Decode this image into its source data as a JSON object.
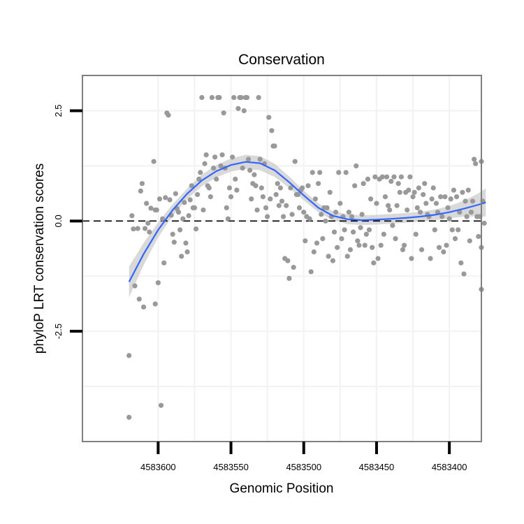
{
  "chart_data": {
    "type": "scatter",
    "title": "Conservation",
    "xlabel": "Genomic Position",
    "ylabel": "phyloP LRT conservation scores",
    "x_reversed": true,
    "xlim": [
      4583378,
      4583652
    ],
    "ylim": [
      -5.0,
      3.3
    ],
    "x_ticks": [
      4583600,
      4583550,
      4583500,
      4583450,
      4583400
    ],
    "x_tick_labels": [
      "4583600",
      "4583550",
      "4583500",
      "4583450",
      "4583400"
    ],
    "y_ticks": [
      2.5,
      0.0,
      -2.5
    ],
    "y_tick_labels": [
      "2.5",
      "0.0",
      "-2.5"
    ],
    "reference_line": {
      "y": 0.0,
      "style": "dashed"
    },
    "colors": {
      "points": "#999999",
      "smooth": "#3366ff",
      "band": "#cccccc",
      "border": "#7f7f7f",
      "grid": "#f2f2f2"
    },
    "series": [
      {
        "name": "scores",
        "points": [
          [
            4583620,
            -3.05
          ],
          [
            4583620,
            -4.45
          ],
          [
            4583618,
            0.12
          ],
          [
            4583617,
            -0.18
          ],
          [
            4583616,
            -1.47
          ],
          [
            4583614,
            -0.17
          ],
          [
            4583613,
            -1.77
          ],
          [
            4583612,
            0.68
          ],
          [
            4583611,
            0.85
          ],
          [
            4583610,
            -1.95
          ],
          [
            4583609,
            -0.17
          ],
          [
            4583608,
            0.4
          ],
          [
            4583607,
            -0.05
          ],
          [
            4583606,
            -0.25
          ],
          [
            4583605,
            0.29
          ],
          [
            4583603,
            1.35
          ],
          [
            4583602,
            -1.88
          ],
          [
            4583602,
            0.25
          ],
          [
            4583601,
            0.25
          ],
          [
            4583600,
            -1.4
          ],
          [
            4583599,
            0.5
          ],
          [
            4583598,
            -4.18
          ],
          [
            4583597,
            0.05
          ],
          [
            4583596,
            -0.95
          ],
          [
            4583595,
            0.53
          ],
          [
            4583594,
            2.45
          ],
          [
            4583593,
            2.4
          ],
          [
            4583592,
            0.48
          ],
          [
            4583591,
            0.13
          ],
          [
            4583590,
            -0.3
          ],
          [
            4583589,
            -0.48
          ],
          [
            4583588,
            0.62
          ],
          [
            4583587,
            0.28
          ],
          [
            4583586,
            0.2
          ],
          [
            4583585,
            -0.2
          ],
          [
            4583584,
            -0.8
          ],
          [
            4583583,
            0.05
          ],
          [
            4583582,
            0.42
          ],
          [
            4583581,
            -0.5
          ],
          [
            4583580,
            -0.7
          ],
          [
            4583579,
            0.12
          ],
          [
            4583578,
            0.48
          ],
          [
            4583577,
            0.8
          ],
          [
            4583576,
            0.3
          ],
          [
            4583575,
            0.3
          ],
          [
            4583574,
            -0.18
          ],
          [
            4583573,
            0.6
          ],
          [
            4583572,
            0.95
          ],
          [
            4583571,
            1.1
          ],
          [
            4583570,
            2.8
          ],
          [
            4583569,
            0.25
          ],
          [
            4583568,
            1.3
          ],
          [
            4583567,
            1.5
          ],
          [
            4583566,
            0.8
          ],
          [
            4583565,
            0.75
          ],
          [
            4583564,
            0.55
          ],
          [
            4583563,
            2.8
          ],
          [
            4583562,
            1.2
          ],
          [
            4583561,
            1.45
          ],
          [
            4583560,
            0.95
          ],
          [
            4583559,
            2.8
          ],
          [
            4583558,
            2.8
          ],
          [
            4583557,
            1.25
          ],
          [
            4583556,
            1.5
          ],
          [
            4583555,
            2.45
          ],
          [
            4583554,
            1.2
          ],
          [
            4583553,
            0.3
          ],
          [
            4583552,
            0.05
          ],
          [
            4583551,
            0.75
          ],
          [
            4583550,
            0.55
          ],
          [
            4583549,
            1.45
          ],
          [
            4583548,
            2.8
          ],
          [
            4583547,
            0.95
          ],
          [
            4583546,
            0.7
          ],
          [
            4583545,
            2.55
          ],
          [
            4583544,
            2.8
          ],
          [
            4583543,
            2.8
          ],
          [
            4583542,
            1.2
          ],
          [
            4583541,
            2.5
          ],
          [
            4583540,
            2.8
          ],
          [
            4583539,
            2.8
          ],
          [
            4583538,
            1.4
          ],
          [
            4583537,
            1.15
          ],
          [
            4583536,
            0.5
          ],
          [
            4583535,
            0.85
          ],
          [
            4583534,
            1.05
          ],
          [
            4583533,
            0.8
          ],
          [
            4583532,
            0.25
          ],
          [
            4583531,
            2.8
          ],
          [
            4583530,
            1.4
          ],
          [
            4583529,
            0.75
          ],
          [
            4583528,
            0.55
          ],
          [
            4583527,
            1.3
          ],
          [
            4583526,
            0.3
          ],
          [
            4583525,
            0.1
          ],
          [
            4583524,
            2.35
          ],
          [
            4583523,
            0.5
          ],
          [
            4583522,
            2.05
          ],
          [
            4583521,
            1.7
          ],
          [
            4583520,
            1.7
          ],
          [
            4583519,
            0.6
          ],
          [
            4583518,
            0.85
          ],
          [
            4583517,
            0.35
          ],
          [
            4583516,
            0.75
          ],
          [
            4583515,
            0.45
          ],
          [
            4583514,
            0.1
          ],
          [
            4583513,
            -0.85
          ],
          [
            4583512,
            0.35
          ],
          [
            4583511,
            -0.9
          ],
          [
            4583510,
            -1.3
          ],
          [
            4583509,
            0.75
          ],
          [
            4583508,
            0.15
          ],
          [
            4583507,
            -1.05
          ],
          [
            4583506,
            1.35
          ],
          [
            4583505,
            0.6
          ],
          [
            4583504,
            0.6
          ],
          [
            4583503,
            0.3
          ],
          [
            4583502,
            0.7
          ],
          [
            4583501,
            0.75
          ],
          [
            4583500,
            0.2
          ],
          [
            4583499,
            -0.45
          ],
          [
            4583498,
            0.1
          ],
          [
            4583497,
            0.8
          ],
          [
            4583496,
            0.05
          ],
          [
            4583495,
            -1.15
          ],
          [
            4583494,
            1.1
          ],
          [
            4583493,
            -0.7
          ],
          [
            4583492,
            0.5
          ],
          [
            4583491,
            -0.5
          ],
          [
            4583490,
            0.85
          ],
          [
            4583489,
            1.1
          ],
          [
            4583488,
            0.15
          ],
          [
            4583487,
            -0.4
          ],
          [
            4583486,
            0.3
          ],
          [
            4583485,
            0.0
          ],
          [
            4583484,
            0.3
          ],
          [
            4583483,
            -0.8
          ],
          [
            4583482,
            0.65
          ],
          [
            4583481,
            0.1
          ],
          [
            4583480,
            -0.9
          ],
          [
            4583479,
            -0.25
          ],
          [
            4583478,
            0.2
          ],
          [
            4583477,
            -0.6
          ],
          [
            4583476,
            1.1
          ],
          [
            4583475,
            0.4
          ],
          [
            4583474,
            -0.4
          ],
          [
            4583473,
            0.1
          ],
          [
            4583472,
            -0.2
          ],
          [
            4583471,
            1.1
          ],
          [
            4583470,
            -0.8
          ],
          [
            4583469,
            0.2
          ],
          [
            4583468,
            -0.65
          ],
          [
            4583467,
            0.1
          ],
          [
            4583466,
            -0.25
          ],
          [
            4583465,
            0.8
          ],
          [
            4583464,
            1.25
          ],
          [
            4583463,
            -0.45
          ],
          [
            4583462,
            -0.55
          ],
          [
            4583461,
            -0.15
          ],
          [
            4583460,
            0.15
          ],
          [
            4583459,
            0.85
          ],
          [
            4583458,
            -0.55
          ],
          [
            4583457,
            -0.3
          ],
          [
            4583456,
            0.95
          ],
          [
            4583455,
            -0.2
          ],
          [
            4583454,
            0.5
          ],
          [
            4583453,
            -0.6
          ],
          [
            4583452,
            -0.95
          ],
          [
            4583451,
            1.0
          ],
          [
            4583450,
            0.4
          ],
          [
            4583449,
            -0.85
          ],
          [
            4583448,
            0.95
          ],
          [
            4583447,
            -0.55
          ],
          [
            4583446,
            1.0
          ],
          [
            4583445,
            -0.3
          ],
          [
            4583444,
            0.55
          ],
          [
            4583443,
            1.0
          ],
          [
            4583442,
            0.35
          ],
          [
            4583441,
            0.25
          ],
          [
            4583440,
            0.9
          ],
          [
            4583439,
            -0.1
          ],
          [
            4583438,
            1.0
          ],
          [
            4583437,
            -0.4
          ],
          [
            4583436,
            0.35
          ],
          [
            4583435,
            0.85
          ],
          [
            4583434,
            0.65
          ],
          [
            4583433,
            1.0
          ],
          [
            4583432,
            -0.65
          ],
          [
            4583431,
            -0.55
          ],
          [
            4583430,
            0.65
          ],
          [
            4583429,
            0.25
          ],
          [
            4583428,
            0.7
          ],
          [
            4583427,
            1.0
          ],
          [
            4583426,
            -0.85
          ],
          [
            4583425,
            0.55
          ],
          [
            4583424,
            0.65
          ],
          [
            4583423,
            -0.3
          ],
          [
            4583422,
            0.3
          ],
          [
            4583421,
            0.75
          ],
          [
            4583420,
            0.2
          ],
          [
            4583419,
            -0.65
          ],
          [
            4583418,
            0.6
          ],
          [
            4583417,
            0.85
          ],
          [
            4583416,
            0.4
          ],
          [
            4583415,
            0.15
          ],
          [
            4583414,
            0.1
          ],
          [
            4583413,
            -0.85
          ],
          [
            4583412,
            0.5
          ],
          [
            4583411,
            0.75
          ],
          [
            4583410,
            -0.2
          ],
          [
            4583409,
            0.4
          ],
          [
            4583408,
            0.2
          ],
          [
            4583407,
            -0.6
          ],
          [
            4583406,
            0.55
          ],
          [
            4583405,
            0.1
          ],
          [
            4583404,
            -0.7
          ],
          [
            4583403,
            0.55
          ],
          [
            4583402,
            -0.55
          ],
          [
            4583401,
            0.3
          ],
          [
            4583400,
            0.05
          ],
          [
            4583399,
            0.5
          ],
          [
            4583398,
            -0.2
          ],
          [
            4583397,
            0.7
          ],
          [
            4583396,
            -0.4
          ],
          [
            4583395,
            0.55
          ],
          [
            4583394,
            -0.2
          ],
          [
            4583393,
            0.2
          ],
          [
            4583392,
            -0.95
          ],
          [
            4583391,
            0.65
          ],
          [
            4583390,
            -1.2
          ],
          [
            4583389,
            0.45
          ],
          [
            4583388,
            0.1
          ],
          [
            4583387,
            0.7
          ],
          [
            4583386,
            -0.45
          ],
          [
            4583385,
            0.2
          ],
          [
            4583384,
            0.45
          ],
          [
            4583383,
            1.4
          ],
          [
            4583382,
            1.3
          ],
          [
            4583381,
            0.1
          ],
          [
            4583380,
            -0.35
          ],
          [
            4583379,
            0.1
          ],
          [
            4583378,
            -0.6
          ],
          [
            4583378,
            1.35
          ],
          [
            4583378,
            -1.55
          ],
          [
            4583377,
            0.45
          ],
          [
            4583376,
            -0.05
          ]
        ]
      },
      {
        "name": "smooth",
        "x": [
          4583620,
          4583610,
          4583600,
          4583590,
          4583580,
          4583570,
          4583560,
          4583550,
          4583540,
          4583530,
          4583520,
          4583510,
          4583500,
          4583490,
          4583480,
          4583470,
          4583460,
          4583450,
          4583440,
          4583430,
          4583420,
          4583410,
          4583400,
          4583390,
          4583380,
          4583375
        ],
        "values": [
          -1.38,
          -0.75,
          -0.2,
          0.25,
          0.62,
          0.92,
          1.13,
          1.27,
          1.34,
          1.31,
          1.15,
          0.88,
          0.58,
          0.3,
          0.12,
          0.04,
          0.02,
          0.03,
          0.05,
          0.07,
          0.1,
          0.14,
          0.2,
          0.28,
          0.37,
          0.42
        ],
        "se": [
          0.35,
          0.25,
          0.17,
          0.13,
          0.12,
          0.13,
          0.14,
          0.15,
          0.16,
          0.16,
          0.15,
          0.13,
          0.11,
          0.1,
          0.1,
          0.11,
          0.11,
          0.11,
          0.11,
          0.11,
          0.11,
          0.12,
          0.14,
          0.18,
          0.26,
          0.32
        ]
      }
    ]
  }
}
